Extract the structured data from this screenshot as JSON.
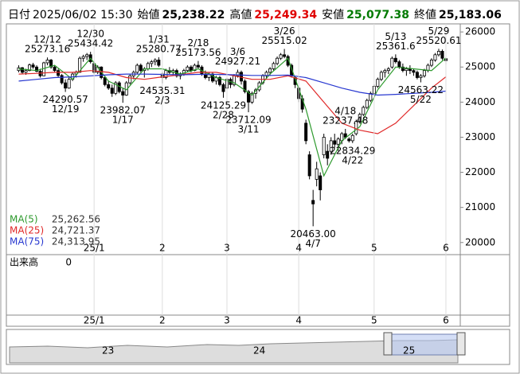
{
  "header": {
    "date_label": "日付",
    "datetime": "2025/06/02 15:30",
    "fields": [
      {
        "name": "始値",
        "value": "25,238.22",
        "color": "#000000"
      },
      {
        "name": "高値",
        "value": "25,249.34",
        "color": "#e00000"
      },
      {
        "name": "安値",
        "value": "25,077.38",
        "color": "#007a00"
      },
      {
        "name": "終値",
        "value": "25,183.06",
        "color": "#000000"
      }
    ]
  },
  "chart_data": {
    "type": "candlestick",
    "xlim": [
      -3,
      123
    ],
    "xticks": [
      {
        "value": 21,
        "label": "25/1"
      },
      {
        "value": 40,
        "label": "2"
      },
      {
        "value": 58,
        "label": "3"
      },
      {
        "value": 78,
        "label": "4"
      },
      {
        "value": 99,
        "label": "5"
      },
      {
        "value": 119,
        "label": "6"
      }
    ],
    "ylim": [
      19700,
      26230
    ],
    "yticks": [
      20000,
      21000,
      22000,
      23000,
      24000,
      25000,
      26000
    ],
    "up_color": "#ffffff",
    "down_color": "#000000",
    "ohlc": [
      [
        24900,
        25050,
        24850,
        24980
      ],
      [
        24980,
        25000,
        24800,
        24850
      ],
      [
        24850,
        24950,
        24780,
        24900
      ],
      [
        24900,
        25100,
        24880,
        25060
      ],
      [
        25060,
        25120,
        24950,
        25000
      ],
      [
        25000,
        25050,
        24850,
        24880
      ],
      [
        24880,
        24950,
        24700,
        24750
      ],
      [
        24750,
        25150,
        24740,
        25120
      ],
      [
        25120,
        25273.16,
        25050,
        25200
      ],
      [
        25200,
        25230,
        24950,
        25000
      ],
      [
        25000,
        25050,
        24850,
        24900
      ],
      [
        24900,
        24950,
        24700,
        24760
      ],
      [
        24760,
        24800,
        24500,
        24550
      ],
      [
        24550,
        24650,
        24290.57,
        24400
      ],
      [
        24400,
        24700,
        24380,
        24650
      ],
      [
        24650,
        24850,
        24600,
        24800
      ],
      [
        24800,
        24900,
        24700,
        24850
      ],
      [
        24850,
        25300,
        24840,
        25250
      ],
      [
        25250,
        25350,
        25150,
        25300
      ],
      [
        25300,
        25400,
        25200,
        25350
      ],
      [
        25350,
        25434.42,
        25100,
        25150
      ],
      [
        25100,
        25150,
        24800,
        24850
      ],
      [
        24850,
        25050,
        24800,
        25000
      ],
      [
        25000,
        25020,
        24650,
        24700
      ],
      [
        24700,
        24750,
        24450,
        24500
      ],
      [
        24500,
        24600,
        24350,
        24400
      ],
      [
        24400,
        24500,
        24150,
        24250
      ],
      [
        24250,
        24600,
        24200,
        24550
      ],
      [
        24550,
        24600,
        24250,
        24300
      ],
      [
        24300,
        24400,
        23982.07,
        24200
      ],
      [
        24200,
        24600,
        24180,
        24550
      ],
      [
        24550,
        24800,
        24500,
        24750
      ],
      [
        24750,
        24900,
        24650,
        24850
      ],
      [
        24850,
        25100,
        24800,
        25050
      ],
      [
        25050,
        25100,
        24850,
        24900
      ],
      [
        24900,
        25000,
        24700,
        24950
      ],
      [
        24950,
        25150,
        24900,
        25100
      ],
      [
        25100,
        25200,
        25000,
        25150
      ],
      [
        25150,
        25250,
        25050,
        25200
      ],
      [
        25200,
        25280.77,
        25000,
        25050
      ],
      [
        24800,
        24850,
        24535.31,
        24700
      ],
      [
        24700,
        24950,
        24650,
        24900
      ],
      [
        24900,
        25000,
        24800,
        24850
      ],
      [
        24850,
        24950,
        24750,
        24900
      ],
      [
        24900,
        24950,
        24700,
        24750
      ],
      [
        24750,
        24850,
        24650,
        24800
      ],
      [
        24800,
        24950,
        24750,
        24900
      ],
      [
        24900,
        25050,
        24850,
        25000
      ],
      [
        25000,
        25050,
        24850,
        24900
      ],
      [
        24900,
        25100,
        24880,
        25050
      ],
      [
        25050,
        25173.56,
        24950,
        25000
      ],
      [
        25000,
        25050,
        24750,
        24800
      ],
      [
        24800,
        24900,
        24650,
        24700
      ],
      [
        24700,
        24850,
        24600,
        24800
      ],
      [
        24800,
        24850,
        24550,
        24600
      ],
      [
        24600,
        24750,
        24500,
        24700
      ],
      [
        24700,
        24750,
        24450,
        24500
      ],
      [
        24500,
        24550,
        24125.29,
        24300
      ],
      [
        24400,
        24700,
        24350,
        24650
      ],
      [
        24650,
        24700,
        24400,
        24500
      ],
      [
        24500,
        24800,
        24450,
        24750
      ],
      [
        24750,
        24927.21,
        24700,
        24850
      ],
      [
        24850,
        24900,
        24500,
        24600
      ],
      [
        24600,
        24650,
        24250,
        24300
      ],
      [
        24300,
        24350,
        23712.09,
        24000
      ],
      [
        24000,
        24300,
        23950,
        24250
      ],
      [
        24250,
        24400,
        24100,
        24350
      ],
      [
        24350,
        24600,
        24300,
        24550
      ],
      [
        24550,
        24800,
        24500,
        24750
      ],
      [
        24750,
        24900,
        24650,
        24850
      ],
      [
        24850,
        25000,
        24750,
        24950
      ],
      [
        24950,
        25150,
        24900,
        25100
      ],
      [
        25100,
        25300,
        25050,
        25250
      ],
      [
        25250,
        25400,
        25200,
        25350
      ],
      [
        25350,
        25515.02,
        25250,
        25300
      ],
      [
        25300,
        25350,
        25000,
        25050
      ],
      [
        25050,
        25100,
        24700,
        24750
      ],
      [
        24700,
        24750,
        24400,
        24500
      ],
      [
        24400,
        24450,
        24000,
        24100
      ],
      [
        24100,
        24200,
        23700,
        23800
      ],
      [
        23400,
        23500,
        22800,
        22900
      ],
      [
        22500,
        22600,
        21800,
        21900
      ],
      [
        21200,
        21500,
        20463,
        21100
      ],
      [
        21800,
        22300,
        21600,
        22100
      ],
      [
        21900,
        22000,
        21200,
        21500
      ],
      [
        22500,
        23100,
        22400,
        23000
      ],
      [
        22600,
        22800,
        22200,
        22400
      ],
      [
        22600,
        23000,
        22500,
        22900
      ],
      [
        22900,
        23100,
        22700,
        22800
      ],
      [
        22800,
        23000,
        22600,
        22950
      ],
      [
        22900,
        23150,
        22800,
        23100
      ],
      [
        23100,
        23237.48,
        22950,
        23000
      ],
      [
        22950,
        23000,
        22850,
        22900
      ],
      [
        22900,
        23100,
        22834.29,
        23050
      ],
      [
        23100,
        23500,
        23050,
        23450
      ],
      [
        23450,
        23700,
        23400,
        23650
      ],
      [
        23650,
        23900,
        23600,
        23850
      ],
      [
        23850,
        24100,
        23800,
        24050
      ],
      [
        24050,
        24300,
        24000,
        24250
      ],
      [
        24250,
        24500,
        24200,
        24450
      ],
      [
        24450,
        24700,
        24400,
        24650
      ],
      [
        24650,
        24900,
        24600,
        24850
      ],
      [
        24850,
        24950,
        24700,
        24900
      ],
      [
        24900,
        25000,
        24800,
        24950
      ],
      [
        25000,
        25300,
        24950,
        25250
      ],
      [
        25250,
        25361.6,
        25100,
        25150
      ],
      [
        25150,
        25200,
        24950,
        25000
      ],
      [
        25000,
        25100,
        24850,
        24900
      ],
      [
        24900,
        25000,
        24750,
        24950
      ],
      [
        24950,
        25050,
        24800,
        24900
      ],
      [
        24900,
        24950,
        24750,
        24850
      ],
      [
        24850,
        24900,
        24650,
        24700
      ],
      [
        24700,
        24800,
        24563.22,
        24750
      ],
      [
        24750,
        24950,
        24700,
        24900
      ],
      [
        24900,
        25100,
        24850,
        25050
      ],
      [
        25050,
        25250,
        25000,
        25200
      ],
      [
        25200,
        25400,
        25150,
        25350
      ],
      [
        25350,
        25520.61,
        25300,
        25450
      ],
      [
        25450,
        25500,
        25200,
        25250
      ],
      [
        25238.22,
        25249.34,
        25077.38,
        25183.06
      ]
    ],
    "series": [
      {
        "name": "MA(5)",
        "color": "#2e9a2e",
        "legend_value": "25,262.56",
        "x": [
          0,
          5,
          10,
          15,
          20,
          25,
          30,
          35,
          40,
          45,
          50,
          55,
          60,
          65,
          70,
          75,
          80,
          85,
          90,
          95,
          100,
          105,
          110,
          115,
          119
        ],
        "values": [
          24950,
          24900,
          25050,
          24650,
          25250,
          24600,
          24350,
          24950,
          24950,
          24800,
          24950,
          24700,
          24550,
          24200,
          24800,
          25250,
          23800,
          21900,
          22900,
          23300,
          24350,
          25000,
          24950,
          24900,
          25262.56
        ]
      },
      {
        "name": "MA(25)",
        "color": "#e02828",
        "legend_value": "24,721.37",
        "x": [
          0,
          5,
          10,
          15,
          20,
          25,
          30,
          35,
          40,
          45,
          50,
          55,
          60,
          65,
          70,
          75,
          80,
          85,
          90,
          95,
          100,
          105,
          110,
          115,
          119
        ],
        "values": [
          24800,
          24820,
          24850,
          24850,
          24900,
          24850,
          24700,
          24650,
          24720,
          24780,
          24850,
          24850,
          24750,
          24650,
          24650,
          24750,
          24600,
          24000,
          23400,
          23200,
          23100,
          23400,
          23900,
          24400,
          24721.37
        ]
      },
      {
        "name": "MA(75)",
        "color": "#2838d0",
        "legend_value": "24,313.95",
        "x": [
          0,
          5,
          10,
          15,
          20,
          25,
          30,
          35,
          40,
          45,
          50,
          55,
          60,
          65,
          70,
          75,
          80,
          85,
          90,
          95,
          100,
          105,
          110,
          115,
          119
        ],
        "values": [
          24600,
          24650,
          24700,
          24720,
          24750,
          24780,
          24800,
          24800,
          24790,
          24780,
          24790,
          24790,
          24780,
          24760,
          24760,
          24770,
          24700,
          24550,
          24400,
          24280,
          24200,
          24220,
          24250,
          24280,
          24313.95
        ]
      }
    ],
    "annotations": [
      {
        "date": "12/12",
        "price": 25273.16,
        "x": 8,
        "side": "high"
      },
      {
        "date": "12/19",
        "price": 24290.57,
        "x": 13,
        "side": "low"
      },
      {
        "date": "12/30",
        "price": 25434.42,
        "x": 20,
        "side": "high"
      },
      {
        "date": "1/17",
        "price": 23982.07,
        "x": 29,
        "side": "low"
      },
      {
        "date": "1/31",
        "price": 25280.77,
        "x": 39,
        "side": "high"
      },
      {
        "date": "2/3",
        "price": 24535.31,
        "x": 40,
        "side": "low"
      },
      {
        "date": "2/18",
        "price": 25173.56,
        "x": 50,
        "side": "high"
      },
      {
        "date": "2/28",
        "price": 24125.29,
        "x": 57,
        "side": "low"
      },
      {
        "date": "3/6",
        "price": 24927.21,
        "x": 61,
        "side": "high"
      },
      {
        "date": "3/11",
        "price": 23712.09,
        "x": 64,
        "side": "low"
      },
      {
        "date": "3/26",
        "price": 25515.02,
        "x": 74,
        "side": "high"
      },
      {
        "date": "4/7",
        "price": {
          "value": 20463,
          "label": "20463.00"
        },
        "x": 82,
        "side": "low"
      },
      {
        "date": "4/18",
        "price": 23237.48,
        "x": 91,
        "side": "high"
      },
      {
        "date": "4/22",
        "price": 22834.29,
        "x": 93,
        "side": "low"
      },
      {
        "date": "5/13",
        "price": 25361.6,
        "x": 105,
        "side": "high"
      },
      {
        "date": "5/22",
        "price": 24563.22,
        "x": 112,
        "side": "low"
      },
      {
        "date": "5/29",
        "price": 25520.61,
        "x": 117,
        "side": "high"
      }
    ]
  },
  "volume": {
    "label": "出来高",
    "value": 0
  },
  "navigator": {
    "labels": [
      "23",
      "24",
      "25"
    ]
  }
}
